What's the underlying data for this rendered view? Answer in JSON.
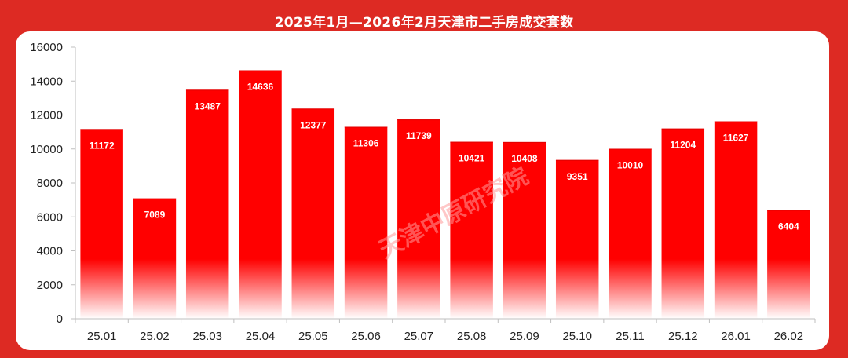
{
  "chart_data": {
    "type": "bar",
    "title": "2025年1月—2026年2月天津市二手房成交套数",
    "xlabel": "",
    "ylabel": "",
    "categories": [
      "25.01",
      "25.02",
      "25.03",
      "25.04",
      "25.05",
      "25.06",
      "25.07",
      "25.08",
      "25.09",
      "25.10",
      "25.11",
      "25.12",
      "26.01",
      "26.02"
    ],
    "values": [
      11172,
      7089,
      13487,
      14636,
      12377,
      11306,
      11739,
      10421,
      10408,
      9351,
      10010,
      11204,
      11627,
      6404
    ],
    "ylim": [
      0,
      16000
    ],
    "yticks": [
      0,
      2000,
      4000,
      6000,
      8000,
      10000,
      12000,
      14000,
      16000
    ],
    "grid": false,
    "legend": "none",
    "bar_color": "#ff0000",
    "bar_fade_color": "#ffffff",
    "watermark": "天津中原研究院"
  },
  "colors": {
    "background": "#dd2a23",
    "panel": "#ffffff",
    "bar": "#ff0000"
  }
}
